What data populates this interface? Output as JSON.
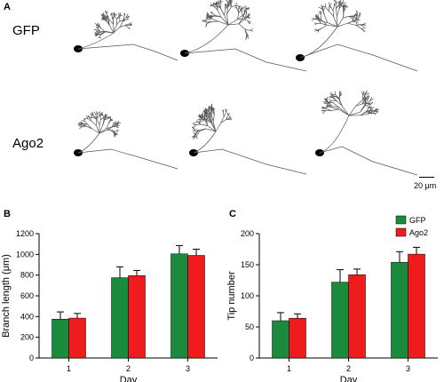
{
  "panels": {
    "a": {
      "letter": "A",
      "rows": [
        {
          "label": "GFP"
        },
        {
          "label": "Ago2"
        }
      ],
      "scale_label": "20 μm"
    },
    "b": {
      "letter": "B"
    },
    "c": {
      "letter": "C"
    }
  },
  "colors": {
    "gfp": "#1a8a3c",
    "ago2": "#ee1c1c",
    "neuron_line": "#555555"
  },
  "chart_data": [
    {
      "type": "bar",
      "panel": "B",
      "categories": [
        "1",
        "2",
        "3"
      ],
      "xlabel": "Day",
      "ylabel": "Branch length (μm)",
      "ylim": [
        0,
        1200
      ],
      "yticks": [
        0,
        200,
        400,
        600,
        800,
        1000,
        1200
      ],
      "legend": false,
      "series": [
        {
          "name": "GFP",
          "values": [
            375,
            775,
            1005
          ],
          "errors": [
            70,
            105,
            80
          ]
        },
        {
          "name": "Ago2",
          "values": [
            385,
            795,
            990
          ],
          "errors": [
            45,
            50,
            60
          ]
        }
      ]
    },
    {
      "type": "bar",
      "panel": "C",
      "categories": [
        "1",
        "2",
        "3"
      ],
      "xlabel": "Day",
      "ylabel": "Tip number",
      "ylim": [
        0,
        200
      ],
      "yticks": [
        0,
        50,
        100,
        150,
        200
      ],
      "legend": "top-right",
      "series": [
        {
          "name": "GFP",
          "values": [
            60,
            122,
            154
          ],
          "errors": [
            13,
            20,
            17
          ]
        },
        {
          "name": "Ago2",
          "values": [
            64,
            134,
            167
          ],
          "errors": [
            7,
            9,
            11
          ]
        }
      ]
    }
  ]
}
